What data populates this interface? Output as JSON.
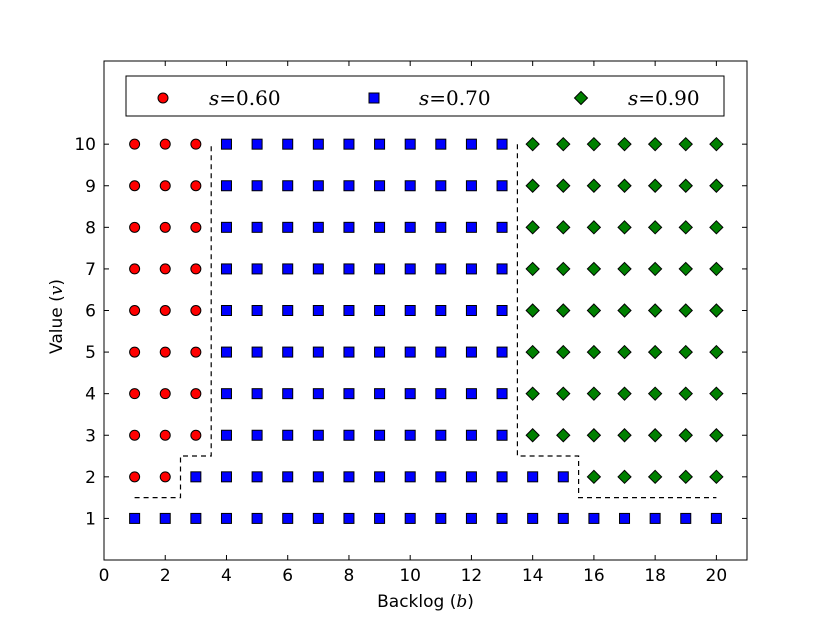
{
  "chart_data": {
    "type": "scatter",
    "title": "",
    "xlabel": "Backlog",
    "xlabel_symbol": "b",
    "ylabel": "Value",
    "ylabel_symbol": "v",
    "xlim": [
      0,
      21
    ],
    "ylim": [
      0,
      12
    ],
    "xticks": [
      0,
      2,
      4,
      6,
      8,
      10,
      12,
      14,
      16,
      18,
      20
    ],
    "yticks": [
      1,
      2,
      3,
      4,
      5,
      6,
      7,
      8,
      9,
      10
    ],
    "grid": false,
    "legend": {
      "placement": "top",
      "entries": [
        {
          "symbol": "s",
          "label": "=0.60"
        },
        {
          "symbol": "s",
          "label": "=0.70"
        },
        {
          "symbol": "s",
          "label": "=0.90"
        }
      ]
    },
    "series": [
      {
        "name": "s=0.60",
        "marker": "circle",
        "color": "#ff0000",
        "points": [
          [
            1,
            2
          ],
          [
            2,
            2
          ],
          [
            1,
            3
          ],
          [
            2,
            3
          ],
          [
            3,
            3
          ],
          [
            1,
            4
          ],
          [
            2,
            4
          ],
          [
            3,
            4
          ],
          [
            1,
            5
          ],
          [
            2,
            5
          ],
          [
            3,
            5
          ],
          [
            1,
            6
          ],
          [
            2,
            6
          ],
          [
            3,
            6
          ],
          [
            1,
            7
          ],
          [
            2,
            7
          ],
          [
            3,
            7
          ],
          [
            1,
            8
          ],
          [
            2,
            8
          ],
          [
            3,
            8
          ],
          [
            1,
            9
          ],
          [
            2,
            9
          ],
          [
            3,
            9
          ],
          [
            1,
            10
          ],
          [
            2,
            10
          ],
          [
            3,
            10
          ]
        ]
      },
      {
        "name": "s=0.70",
        "marker": "square",
        "color": "#0000ff",
        "points": [
          [
            1,
            1
          ],
          [
            2,
            1
          ],
          [
            3,
            1
          ],
          [
            4,
            1
          ],
          [
            5,
            1
          ],
          [
            6,
            1
          ],
          [
            7,
            1
          ],
          [
            8,
            1
          ],
          [
            9,
            1
          ],
          [
            10,
            1
          ],
          [
            11,
            1
          ],
          [
            12,
            1
          ],
          [
            13,
            1
          ],
          [
            14,
            1
          ],
          [
            15,
            1
          ],
          [
            16,
            1
          ],
          [
            17,
            1
          ],
          [
            18,
            1
          ],
          [
            19,
            1
          ],
          [
            20,
            1
          ],
          [
            3,
            2
          ],
          [
            4,
            2
          ],
          [
            5,
            2
          ],
          [
            6,
            2
          ],
          [
            7,
            2
          ],
          [
            8,
            2
          ],
          [
            9,
            2
          ],
          [
            10,
            2
          ],
          [
            11,
            2
          ],
          [
            12,
            2
          ],
          [
            13,
            2
          ],
          [
            14,
            2
          ],
          [
            15,
            2
          ],
          [
            4,
            3
          ],
          [
            5,
            3
          ],
          [
            6,
            3
          ],
          [
            7,
            3
          ],
          [
            8,
            3
          ],
          [
            9,
            3
          ],
          [
            10,
            3
          ],
          [
            11,
            3
          ],
          [
            12,
            3
          ],
          [
            13,
            3
          ],
          [
            4,
            4
          ],
          [
            5,
            4
          ],
          [
            6,
            4
          ],
          [
            7,
            4
          ],
          [
            8,
            4
          ],
          [
            9,
            4
          ],
          [
            10,
            4
          ],
          [
            11,
            4
          ],
          [
            12,
            4
          ],
          [
            13,
            4
          ],
          [
            4,
            5
          ],
          [
            5,
            5
          ],
          [
            6,
            5
          ],
          [
            7,
            5
          ],
          [
            8,
            5
          ],
          [
            9,
            5
          ],
          [
            10,
            5
          ],
          [
            11,
            5
          ],
          [
            12,
            5
          ],
          [
            13,
            5
          ],
          [
            4,
            6
          ],
          [
            5,
            6
          ],
          [
            6,
            6
          ],
          [
            7,
            6
          ],
          [
            8,
            6
          ],
          [
            9,
            6
          ],
          [
            10,
            6
          ],
          [
            11,
            6
          ],
          [
            12,
            6
          ],
          [
            13,
            6
          ],
          [
            4,
            7
          ],
          [
            5,
            7
          ],
          [
            6,
            7
          ],
          [
            7,
            7
          ],
          [
            8,
            7
          ],
          [
            9,
            7
          ],
          [
            10,
            7
          ],
          [
            11,
            7
          ],
          [
            12,
            7
          ],
          [
            13,
            7
          ],
          [
            4,
            8
          ],
          [
            5,
            8
          ],
          [
            6,
            8
          ],
          [
            7,
            8
          ],
          [
            8,
            8
          ],
          [
            9,
            8
          ],
          [
            10,
            8
          ],
          [
            11,
            8
          ],
          [
            12,
            8
          ],
          [
            13,
            8
          ],
          [
            4,
            9
          ],
          [
            5,
            9
          ],
          [
            6,
            9
          ],
          [
            7,
            9
          ],
          [
            8,
            9
          ],
          [
            9,
            9
          ],
          [
            10,
            9
          ],
          [
            11,
            9
          ],
          [
            12,
            9
          ],
          [
            13,
            9
          ],
          [
            4,
            10
          ],
          [
            5,
            10
          ],
          [
            6,
            10
          ],
          [
            7,
            10
          ],
          [
            8,
            10
          ],
          [
            9,
            10
          ],
          [
            10,
            10
          ],
          [
            11,
            10
          ],
          [
            12,
            10
          ],
          [
            13,
            10
          ]
        ]
      },
      {
        "name": "s=0.90",
        "marker": "diamond",
        "color": "#008000",
        "points": [
          [
            16,
            2
          ],
          [
            17,
            2
          ],
          [
            18,
            2
          ],
          [
            19,
            2
          ],
          [
            20,
            2
          ],
          [
            14,
            3
          ],
          [
            15,
            3
          ],
          [
            16,
            3
          ],
          [
            17,
            3
          ],
          [
            18,
            3
          ],
          [
            19,
            3
          ],
          [
            20,
            3
          ],
          [
            14,
            4
          ],
          [
            15,
            4
          ],
          [
            16,
            4
          ],
          [
            17,
            4
          ],
          [
            18,
            4
          ],
          [
            19,
            4
          ],
          [
            20,
            4
          ],
          [
            14,
            5
          ],
          [
            15,
            5
          ],
          [
            16,
            5
          ],
          [
            17,
            5
          ],
          [
            18,
            5
          ],
          [
            19,
            5
          ],
          [
            20,
            5
          ],
          [
            14,
            6
          ],
          [
            15,
            6
          ],
          [
            16,
            6
          ],
          [
            17,
            6
          ],
          [
            18,
            6
          ],
          [
            19,
            6
          ],
          [
            20,
            6
          ],
          [
            14,
            7
          ],
          [
            15,
            7
          ],
          [
            16,
            7
          ],
          [
            17,
            7
          ],
          [
            18,
            7
          ],
          [
            19,
            7
          ],
          [
            20,
            7
          ],
          [
            14,
            8
          ],
          [
            15,
            8
          ],
          [
            16,
            8
          ],
          [
            17,
            8
          ],
          [
            18,
            8
          ],
          [
            19,
            8
          ],
          [
            20,
            8
          ],
          [
            14,
            9
          ],
          [
            15,
            9
          ],
          [
            16,
            9
          ],
          [
            17,
            9
          ],
          [
            18,
            9
          ],
          [
            19,
            9
          ],
          [
            20,
            9
          ],
          [
            14,
            10
          ],
          [
            15,
            10
          ],
          [
            16,
            10
          ],
          [
            17,
            10
          ],
          [
            18,
            10
          ],
          [
            19,
            10
          ],
          [
            20,
            10
          ]
        ]
      }
    ],
    "boundaries": [
      {
        "style": "dashed",
        "points": [
          [
            1,
            1.5
          ],
          [
            2.5,
            1.5
          ],
          [
            2.5,
            2.5
          ],
          [
            3.5,
            2.5
          ],
          [
            3.5,
            10
          ]
        ]
      },
      {
        "style": "dashed",
        "points": [
          [
            13.5,
            10
          ],
          [
            13.5,
            2.5
          ],
          [
            15.5,
            2.5
          ],
          [
            15.5,
            1.5
          ],
          [
            20,
            1.5
          ]
        ]
      }
    ]
  }
}
